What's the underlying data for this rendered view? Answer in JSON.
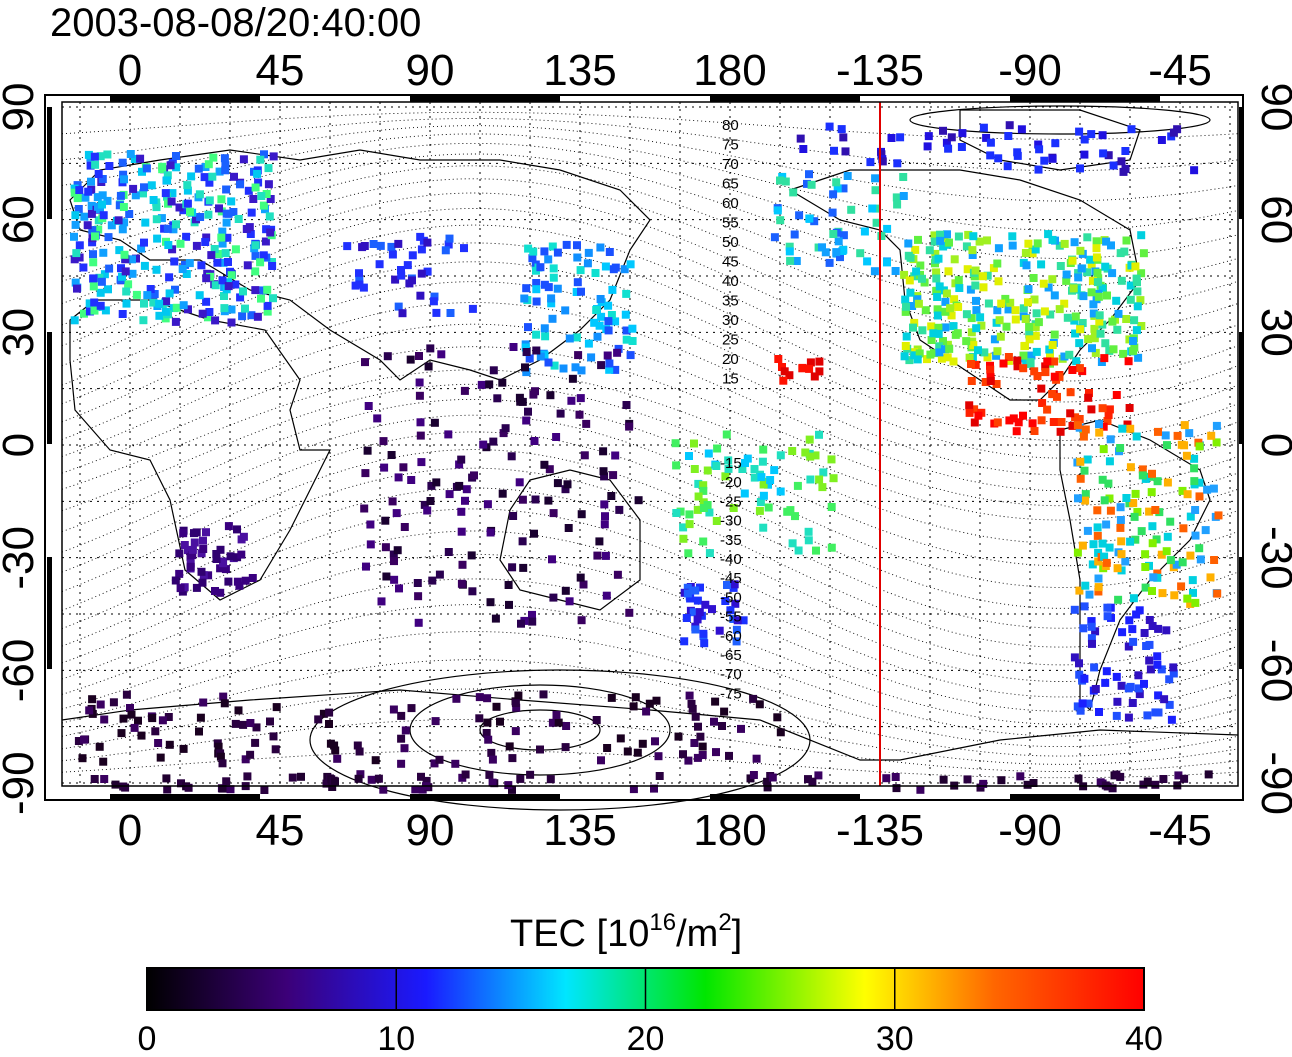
{
  "timestamp": "2003-08-08/20:40:00",
  "x_ticks": [
    "0",
    "45",
    "90",
    "135",
    "180",
    "-135",
    "-90",
    "-45"
  ],
  "y_ticks": [
    "90",
    "60",
    "30",
    "0",
    "-30",
    "-60",
    "-90"
  ],
  "contour_labels_north": [
    "80",
    "75",
    "70",
    "65",
    "60",
    "55",
    "50",
    "45",
    "40",
    "35",
    "30",
    "25",
    "20",
    "15"
  ],
  "contour_labels_south": [
    "-15",
    "-20",
    "-25",
    "-30",
    "-35",
    "-40",
    "-45",
    "-50",
    "-55",
    "-60",
    "-65",
    "-70",
    "-75"
  ],
  "colorbar": {
    "label_main": "TEC  [10",
    "label_sup1": "16",
    "label_mid": "/m",
    "label_sup2": "2",
    "label_end": "]",
    "ticks": [
      "0",
      "10",
      "20",
      "30",
      "40"
    ],
    "min": 0,
    "max": 40,
    "colors": [
      "#000000",
      "#3c0078",
      "#1a1aff",
      "#00e6ff",
      "#00e600",
      "#ffff00",
      "#ff6600",
      "#ff0000"
    ]
  },
  "marker_longitude": -135,
  "colors": {
    "marker_line": "#e00000",
    "frame": "#000000"
  }
}
